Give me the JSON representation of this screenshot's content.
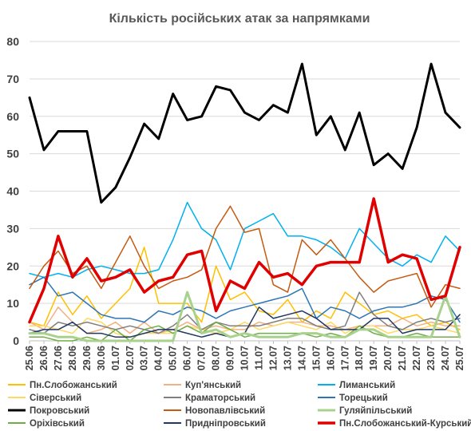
{
  "chart_data": {
    "type": "line",
    "title": "Кількість російських атак за напрямками",
    "xlabel": "",
    "ylabel": "",
    "ylim": [
      0,
      80
    ],
    "yticks": [
      0,
      10,
      20,
      30,
      40,
      50,
      60,
      70,
      80
    ],
    "grid": true,
    "legend_position": "bottom",
    "categories": [
      "25.06",
      "26.06",
      "27.06",
      "28.06",
      "29.06",
      "30.06",
      "01.07",
      "02.07",
      "03.07",
      "04.07",
      "05.07",
      "06.07",
      "07.07",
      "08.07",
      "09.07",
      "10.07",
      "11.07",
      "12.07",
      "13.07",
      "14.07",
      "15.07",
      "16.07",
      "17.07",
      "18.07",
      "19.07",
      "20.07",
      "21.07",
      "22.07",
      "23.07",
      "24.07",
      "25.07"
    ],
    "series": [
      {
        "name": "Пн.Слобожанський",
        "color": "#FFC000",
        "width": 1.5,
        "values": [
          5,
          4,
          13,
          7,
          12,
          6,
          10,
          14,
          25,
          10,
          10,
          10,
          5,
          20,
          11,
          13,
          8,
          7,
          11,
          5,
          8,
          6,
          13,
          10,
          7,
          8,
          6,
          7,
          4,
          5,
          3
        ]
      },
      {
        "name": "Куп'янський",
        "color": "#F4B183",
        "width": 1.5,
        "values": [
          5,
          3,
          9,
          5,
          2,
          3,
          5,
          2,
          5,
          2,
          3,
          5,
          3,
          4,
          3,
          3,
          5,
          4,
          5,
          5,
          4,
          4,
          3,
          4,
          4,
          4,
          6,
          4,
          5,
          4,
          4
        ]
      },
      {
        "name": "Лиманський",
        "color": "#00B0F0",
        "width": 1.5,
        "values": [
          18,
          17,
          18,
          17,
          19,
          20,
          19,
          18,
          18,
          19,
          27,
          37,
          30,
          27,
          19,
          30,
          32,
          34,
          28,
          28,
          27,
          25,
          22,
          30,
          26,
          22,
          20,
          23,
          21,
          28,
          24
        ]
      },
      {
        "name": "Сіверський",
        "color": "#FFD966",
        "width": 1.5,
        "values": [
          4,
          4,
          3,
          2,
          6,
          5,
          2,
          1,
          2,
          2,
          2,
          4,
          3,
          2,
          3,
          5,
          3,
          4,
          5,
          4,
          3,
          5,
          2,
          4,
          4,
          2,
          3,
          3,
          4,
          3,
          2
        ]
      },
      {
        "name": "Краматорський",
        "color": "#7F7F7F",
        "width": 1.5,
        "values": [
          3,
          2,
          5,
          4,
          5,
          4,
          3,
          4,
          3,
          2,
          4,
          7,
          3,
          5,
          4,
          4,
          4,
          5,
          6,
          6,
          4,
          3,
          4,
          13,
          7,
          4,
          3,
          5,
          6,
          5,
          6
        ]
      },
      {
        "name": "Торецький",
        "color": "#2E75B6",
        "width": 1.5,
        "values": [
          15,
          17,
          12,
          13,
          10,
          7,
          6,
          6,
          5,
          8,
          7,
          9,
          8,
          6,
          8,
          9,
          10,
          11,
          12,
          14,
          6,
          9,
          8,
          6,
          8,
          9,
          9,
          10,
          12,
          11,
          5
        ]
      },
      {
        "name": "Покровський",
        "color": "#000000",
        "width": 3,
        "values": [
          65,
          51,
          56,
          56,
          56,
          37,
          41,
          49,
          58,
          54,
          66,
          59,
          60,
          68,
          67,
          61,
          59,
          63,
          61,
          74,
          55,
          60,
          51,
          61,
          47,
          50,
          46,
          57,
          74,
          61,
          57
        ]
      },
      {
        "name": "Новопавлівський",
        "color": "#C55A11",
        "width": 1.5,
        "values": [
          14,
          20,
          24,
          18,
          20,
          14,
          21,
          28,
          20,
          14,
          16,
          17,
          19,
          30,
          36,
          29,
          30,
          15,
          13,
          27,
          23,
          27,
          22,
          17,
          13,
          16,
          17,
          18,
          9,
          15,
          14
        ]
      },
      {
        "name": "Гуляйпільський",
        "color": "#A9D18E",
        "width": 3,
        "values": [
          2,
          2,
          1,
          1,
          0,
          0,
          0,
          0,
          0,
          0,
          0,
          13,
          2,
          3,
          1,
          2,
          1,
          1,
          1,
          2,
          2,
          1,
          1,
          3,
          3,
          1,
          1,
          1,
          1,
          12,
          1
        ]
      },
      {
        "name": "Оріхівський",
        "color": "#70AD47",
        "width": 1.5,
        "values": [
          1,
          1,
          0,
          0,
          1,
          0,
          3,
          0,
          3,
          4,
          2,
          4,
          2,
          5,
          3,
          1,
          2,
          2,
          2,
          2,
          1,
          2,
          1,
          4,
          2,
          1,
          1,
          2,
          1,
          1,
          1
        ]
      },
      {
        "name": "Придніпровський",
        "color": "#1F3864",
        "width": 1.5,
        "values": [
          2,
          3,
          3,
          5,
          2,
          2,
          1,
          1,
          2,
          3,
          3,
          2,
          1,
          2,
          1,
          2,
          9,
          6,
          7,
          8,
          6,
          3,
          3,
          3,
          6,
          6,
          2,
          3,
          3,
          3,
          7
        ]
      },
      {
        "name": "Пн.Слобожанський-Курський",
        "color": "#E00000",
        "width": 3.5,
        "values": [
          5,
          14,
          28,
          17,
          22,
          16,
          17,
          19,
          13,
          16,
          17,
          23,
          24,
          8,
          16,
          14,
          21,
          17,
          18,
          15,
          20,
          21,
          21,
          21,
          38,
          21,
          23,
          22,
          11,
          12,
          25
        ]
      }
    ]
  }
}
